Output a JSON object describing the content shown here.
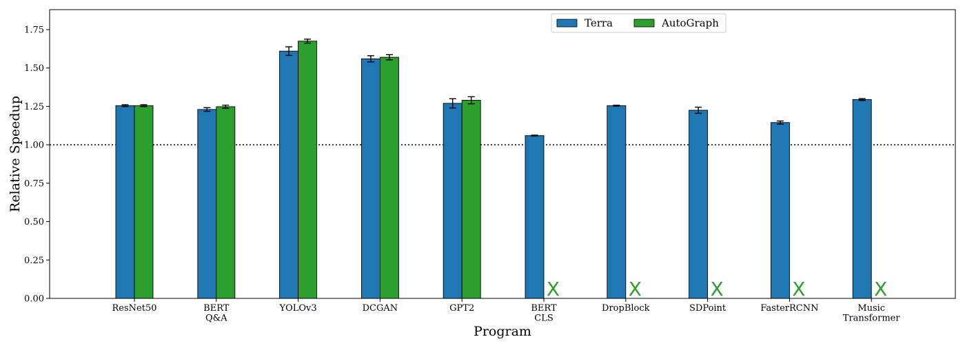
{
  "chart_data": {
    "type": "bar",
    "xlabel": "Program",
    "ylabel": "Relative Speedup",
    "ylim": [
      0,
      1.88
    ],
    "yticks": [
      "0.00",
      "0.25",
      "0.50",
      "0.75",
      "1.00",
      "1.25",
      "1.50",
      "1.75"
    ],
    "reference_line": 1.0,
    "categories": [
      [
        "ResNet50"
      ],
      [
        "BERT",
        "Q&A"
      ],
      [
        "YOLOv3"
      ],
      [
        "DCGAN"
      ],
      [
        "GPT2"
      ],
      [
        "BERT",
        "CLS"
      ],
      [
        "DropBlock"
      ],
      [
        "SDPoint"
      ],
      [
        "FasterRCNN"
      ],
      [
        "Music",
        "Transformer"
      ]
    ],
    "series": [
      {
        "name": "Terra",
        "color": "#1f77b4",
        "values": [
          1.255,
          1.23,
          1.61,
          1.56,
          1.27,
          1.06,
          1.255,
          1.225,
          1.145,
          1.295
        ],
        "errors": [
          0.006,
          0.012,
          0.028,
          0.02,
          0.03,
          0.003,
          0.003,
          0.02,
          0.01,
          0.006
        ]
      },
      {
        "name": "AutoGraph",
        "color": "#2ca02c",
        "values": [
          1.255,
          1.248,
          1.675,
          1.57,
          1.29,
          null,
          null,
          null,
          null,
          null
        ],
        "errors": [
          0.006,
          0.01,
          0.013,
          0.017,
          0.023,
          null,
          null,
          null,
          null,
          null
        ]
      }
    ],
    "unsupported_marker": "X",
    "legend": "top-center",
    "grid": false
  }
}
